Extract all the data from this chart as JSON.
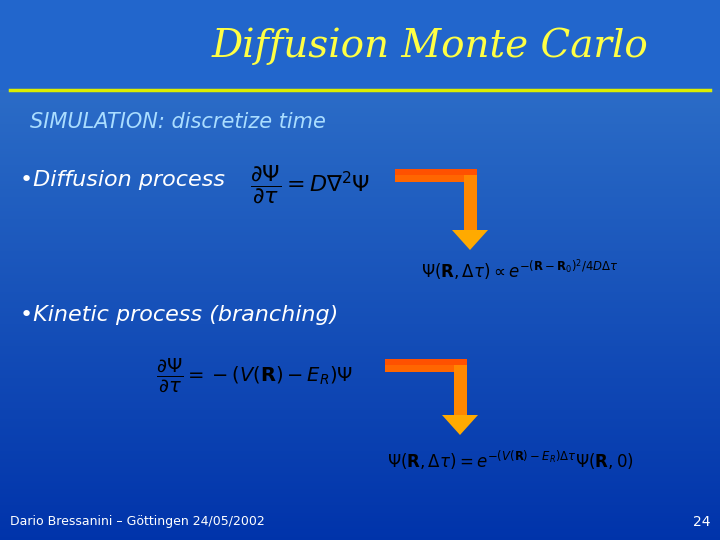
{
  "title": "Diffusion Monte Carlo",
  "title_color": "#FFFF44",
  "title_fontsize": 28,
  "bg_color_top": "#3377cc",
  "bg_color_bottom": "#0033aa",
  "line_color": "#DDEE00",
  "simulation_text": "SIMULATION: discretize time",
  "simulation_color": "#AADDFF",
  "simulation_fontsize": 15,
  "label_color": "#FFFFFF",
  "label_fontsize": 16,
  "eq_color": "#000000",
  "result_color": "#000000",
  "eq_fontsize": 14,
  "result_fontsize": 12,
  "footer_text": "Dario Bressanini – Göttingen 24/05/2002",
  "footer_color": "#FFFFFF",
  "page_number": "24",
  "arrow_body_color": "#FF5500",
  "arrow_head_color": "#FFAA00"
}
